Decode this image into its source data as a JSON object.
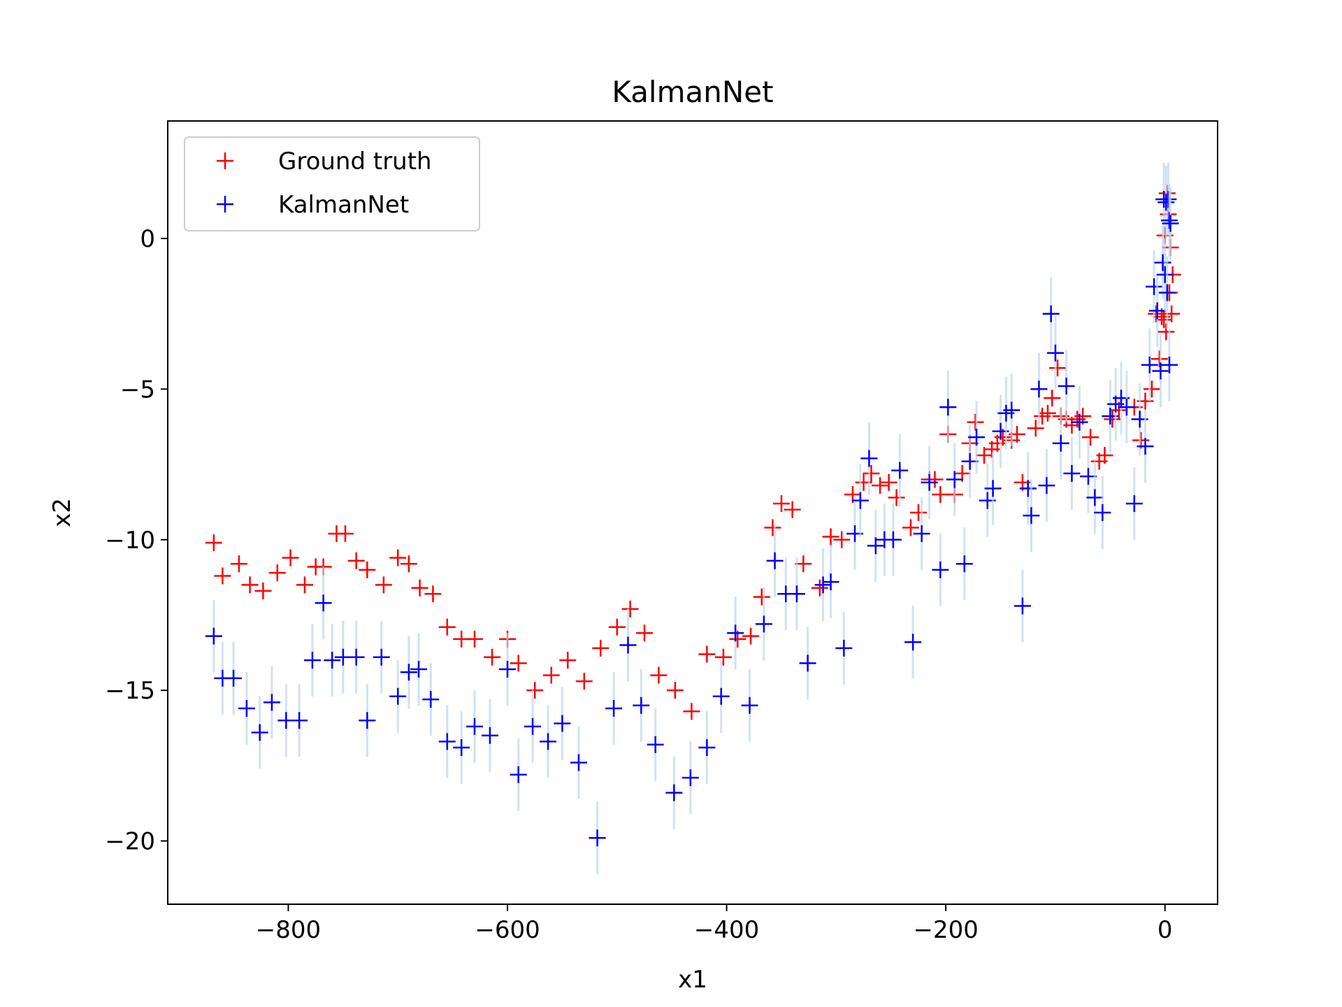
{
  "chart_data": {
    "type": "scatter",
    "title": "KalmanNet",
    "xlabel": "x1",
    "ylabel": "x2",
    "xlim": [
      -910,
      48
    ],
    "ylim": [
      -22.1,
      3.9
    ],
    "xticks": [
      -800,
      -600,
      -400,
      -200,
      0
    ],
    "yticks": [
      0,
      -5,
      -10,
      -15,
      -20
    ],
    "xtick_labels": [
      "−800",
      "−600",
      "−400",
      "−200",
      "0"
    ],
    "ytick_labels": [
      "0",
      "−5",
      "−10",
      "−15",
      "−20"
    ],
    "grid": false,
    "legend_position": "top-left",
    "marker": "+",
    "series": [
      {
        "name": "Ground truth",
        "color": "#ff0000",
        "points": [
          [
            -868,
            -10.1
          ],
          [
            -860,
            -11.2
          ],
          [
            -845,
            -10.8
          ],
          [
            -835,
            -11.5
          ],
          [
            -823,
            -11.7
          ],
          [
            -810,
            -11.1
          ],
          [
            -798,
            -10.6
          ],
          [
            -785,
            -11.5
          ],
          [
            -775,
            -10.9
          ],
          [
            -768,
            -10.9
          ],
          [
            -756,
            -9.8
          ],
          [
            -748,
            -9.8
          ],
          [
            -738,
            -10.7
          ],
          [
            -728,
            -11.0
          ],
          [
            -713,
            -11.5
          ],
          [
            -700,
            -10.6
          ],
          [
            -690,
            -10.8
          ],
          [
            -680,
            -11.6
          ],
          [
            -668,
            -11.8
          ],
          [
            -655,
            -12.9
          ],
          [
            -642,
            -13.3
          ],
          [
            -630,
            -13.3
          ],
          [
            -614,
            -13.9
          ],
          [
            -600,
            -13.3
          ],
          [
            -590,
            -14.1
          ],
          [
            -575,
            -15.0
          ],
          [
            -560,
            -14.5
          ],
          [
            -545,
            -14.0
          ],
          [
            -530,
            -14.7
          ],
          [
            -515,
            -13.6
          ],
          [
            -500,
            -12.9
          ],
          [
            -488,
            -12.3
          ],
          [
            -475,
            -13.1
          ],
          [
            -462,
            -14.5
          ],
          [
            -447,
            -15.0
          ],
          [
            -432,
            -15.7
          ],
          [
            -418,
            -13.8
          ],
          [
            -403,
            -13.9
          ],
          [
            -390,
            -13.3
          ],
          [
            -378,
            -13.2
          ],
          [
            -368,
            -11.9
          ],
          [
            -358,
            -9.6
          ],
          [
            -350,
            -8.8
          ],
          [
            -340,
            -9.0
          ],
          [
            -330,
            -10.8
          ],
          [
            -315,
            -11.6
          ],
          [
            -305,
            -9.9
          ],
          [
            -295,
            -10.0
          ],
          [
            -285,
            -8.5
          ],
          [
            -275,
            -8.1
          ],
          [
            -268,
            -7.8
          ],
          [
            -260,
            -8.2
          ],
          [
            -252,
            -8.1
          ],
          [
            -245,
            -8.6
          ],
          [
            -232,
            -9.6
          ],
          [
            -225,
            -9.1
          ],
          [
            -215,
            -8.0
          ],
          [
            -210,
            -8.0
          ],
          [
            -205,
            -8.5
          ],
          [
            -198,
            -6.5
          ],
          [
            -192,
            -8.5
          ],
          [
            -185,
            -7.8
          ],
          [
            -178,
            -6.8
          ],
          [
            -173,
            -6.1
          ],
          [
            -165,
            -7.2
          ],
          [
            -158,
            -7.0
          ],
          [
            -153,
            -6.8
          ],
          [
            -148,
            -6.6
          ],
          [
            -140,
            -6.7
          ],
          [
            -135,
            -6.5
          ],
          [
            -130,
            -8.1
          ],
          [
            -125,
            -8.3
          ],
          [
            -118,
            -6.3
          ],
          [
            -112,
            -5.9
          ],
          [
            -107,
            -5.8
          ],
          [
            -103,
            -5.3
          ],
          [
            -98,
            -4.3
          ],
          [
            -95,
            -5.9
          ],
          [
            -90,
            -6.0
          ],
          [
            -85,
            -6.2
          ],
          [
            -80,
            -6.0
          ],
          [
            -75,
            -5.9
          ],
          [
            -68,
            -6.6
          ],
          [
            -60,
            -7.4
          ],
          [
            -55,
            -7.2
          ],
          [
            -48,
            -6.0
          ],
          [
            -42,
            -5.7
          ],
          [
            -35,
            -5.6
          ],
          [
            -28,
            -5.6
          ],
          [
            -22,
            -6.7
          ],
          [
            -18,
            -5.4
          ],
          [
            -12,
            -5.0
          ],
          [
            -8,
            -2.5
          ],
          [
            -5,
            -4.0
          ],
          [
            -3,
            -2.6
          ],
          [
            -1,
            -2.7
          ],
          [
            1,
            -3.1
          ],
          [
            0,
            0.1
          ],
          [
            2,
            1.5
          ],
          [
            3,
            0.8
          ],
          [
            4,
            -1.8
          ],
          [
            5,
            -0.3
          ],
          [
            6,
            -2.5
          ],
          [
            7,
            -1.2
          ]
        ]
      },
      {
        "name": "KalmanNet",
        "color": "#0000ff",
        "points": [
          [
            -868,
            -13.2
          ],
          [
            -860,
            -14.6
          ],
          [
            -850,
            -14.6
          ],
          [
            -838,
            -15.6
          ],
          [
            -826,
            -16.4
          ],
          [
            -815,
            -15.4
          ],
          [
            -802,
            -16.0
          ],
          [
            -790,
            -16.0
          ],
          [
            -778,
            -14.0
          ],
          [
            -768,
            -12.1
          ],
          [
            -760,
            -14.0
          ],
          [
            -750,
            -13.9
          ],
          [
            -738,
            -13.9
          ],
          [
            -728,
            -16.0
          ],
          [
            -715,
            -13.9
          ],
          [
            -700,
            -15.2
          ],
          [
            -690,
            -14.4
          ],
          [
            -681,
            -14.3
          ],
          [
            -670,
            -15.3
          ],
          [
            -655,
            -16.7
          ],
          [
            -642,
            -16.9
          ],
          [
            -630,
            -16.2
          ],
          [
            -616,
            -16.5
          ],
          [
            -600,
            -14.3
          ],
          [
            -590,
            -17.8
          ],
          [
            -577,
            -16.2
          ],
          [
            -563,
            -16.7
          ],
          [
            -550,
            -16.1
          ],
          [
            -535,
            -17.4
          ],
          [
            -518,
            -19.9
          ],
          [
            -503,
            -15.6
          ],
          [
            -490,
            -13.5
          ],
          [
            -478,
            -15.5
          ],
          [
            -465,
            -16.8
          ],
          [
            -448,
            -18.4
          ],
          [
            -433,
            -17.9
          ],
          [
            -418,
            -16.9
          ],
          [
            -405,
            -15.2
          ],
          [
            -392,
            -13.1
          ],
          [
            -379,
            -15.5
          ],
          [
            -366,
            -12.8
          ],
          [
            -356,
            -10.7
          ],
          [
            -346,
            -11.8
          ],
          [
            -336,
            -11.8
          ],
          [
            -326,
            -14.1
          ],
          [
            -312,
            -11.5
          ],
          [
            -305,
            -11.4
          ],
          [
            -293,
            -13.6
          ],
          [
            -283,
            -9.8
          ],
          [
            -278,
            -8.7
          ],
          [
            -270,
            -7.3
          ],
          [
            -264,
            -10.2
          ],
          [
            -256,
            -10.0
          ],
          [
            -248,
            -10.0
          ],
          [
            -242,
            -7.7
          ],
          [
            -230,
            -13.4
          ],
          [
            -222,
            -9.8
          ],
          [
            -215,
            -8.1
          ],
          [
            -205,
            -11.0
          ],
          [
            -198,
            -5.6
          ],
          [
            -192,
            -8.0
          ],
          [
            -183,
            -10.8
          ],
          [
            -178,
            -7.4
          ],
          [
            -172,
            -6.6
          ],
          [
            -162,
            -8.7
          ],
          [
            -157,
            -8.3
          ],
          [
            -150,
            -6.4
          ],
          [
            -145,
            -5.8
          ],
          [
            -140,
            -5.7
          ],
          [
            -130,
            -12.2
          ],
          [
            -125,
            -8.3
          ],
          [
            -122,
            -9.2
          ],
          [
            -115,
            -5.0
          ],
          [
            -108,
            -8.2
          ],
          [
            -104,
            -2.5
          ],
          [
            -100,
            -3.8
          ],
          [
            -95,
            -6.8
          ],
          [
            -90,
            -4.9
          ],
          [
            -85,
            -7.8
          ],
          [
            -78,
            -6.1
          ],
          [
            -70,
            -7.9
          ],
          [
            -64,
            -8.6
          ],
          [
            -57,
            -9.1
          ],
          [
            -50,
            -5.9
          ],
          [
            -45,
            -5.5
          ],
          [
            -40,
            -5.3
          ],
          [
            -35,
            -5.6
          ],
          [
            -28,
            -8.8
          ],
          [
            -23,
            -6.0
          ],
          [
            -18,
            -6.9
          ],
          [
            -14,
            -4.2
          ],
          [
            -10,
            -1.6
          ],
          [
            -7,
            -2.4
          ],
          [
            -4,
            -4.4
          ],
          [
            -2,
            -0.8
          ],
          [
            -1,
            1.3
          ],
          [
            0,
            -1.2
          ],
          [
            1,
            1.2
          ],
          [
            2,
            -1.8
          ],
          [
            3,
            1.3
          ],
          [
            4,
            0.6
          ],
          [
            4,
            -4.2
          ],
          [
            5,
            0.5
          ]
        ]
      }
    ]
  }
}
